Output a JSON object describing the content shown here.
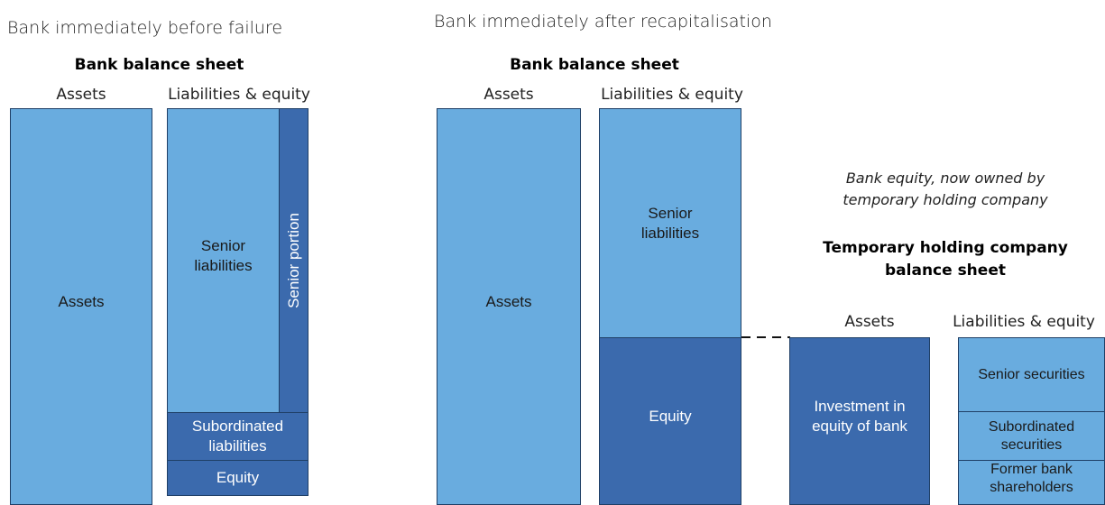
{
  "left": {
    "title": "Bank immediately before failure",
    "sheet_title": "Bank balance sheet",
    "assets_header": "Assets",
    "liabilities_header": "Liabilities & equity",
    "assets": "Assets",
    "senior_liabilities": [
      "Senior",
      "liabilities"
    ],
    "senior_portion": "Senior portion",
    "subordinated_liabilities": [
      "Subordinated",
      "liabilities"
    ],
    "equity": "Equity"
  },
  "middle": {
    "title": "Bank immediately after recapitalisation",
    "sheet_title": "Bank balance sheet",
    "assets_header": "Assets",
    "liabilities_header": "Liabilities & equity",
    "assets": "Assets",
    "senior_liabilities": [
      "Senior",
      "liabilities"
    ],
    "equity": "Equity"
  },
  "right": {
    "note": [
      "Bank equity, now owned by",
      "temporary holding company"
    ],
    "sheet_title": [
      "Temporary holding company",
      "balance sheet"
    ],
    "assets_header": "Assets",
    "liabilities_header": "Liabilities & equity",
    "investment": [
      "Investment in",
      "equity of bank"
    ],
    "senior_securities": "Senior securities",
    "subordinated_securities": [
      "Subordinated",
      "securities"
    ],
    "former_shareholders": [
      "Former bank",
      "shareholders"
    ]
  }
}
